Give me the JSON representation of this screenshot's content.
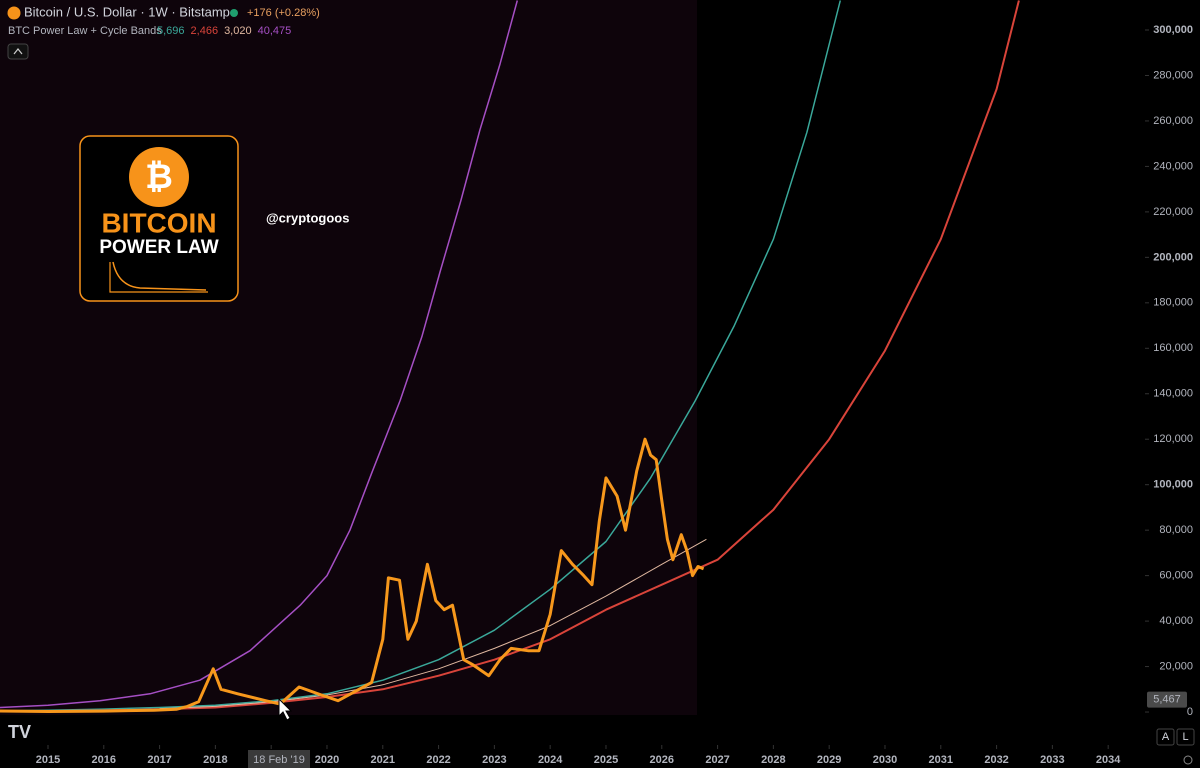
{
  "header": {
    "symbol_title": "Bitcoin / U.S. Dollar · 1W · Bitstamp",
    "change": "+176 (+0.28%)",
    "indicator": "BTC Power Law + Cycle Bands",
    "indicator_values": [
      {
        "text": "5,696",
        "color": "#3aa89a"
      },
      {
        "text": "2,466",
        "color": "#d9443a"
      },
      {
        "text": "3,020",
        "color": "#e0b8a0"
      },
      {
        "text": "40,475",
        "color": "#a54fc4"
      }
    ]
  },
  "logo": {
    "symbol": "₿",
    "line1": "BITCOIN",
    "line2": "POWER LAW"
  },
  "watermark": "@cryptogoos",
  "controls": {
    "auto": "A",
    "log": "L"
  },
  "chart_data": {
    "type": "line",
    "xlim": [
      2014.14,
      2034.66
    ],
    "ylim": [
      -14500,
      313200
    ],
    "xticks": [
      2015,
      2016,
      2017,
      2018,
      2019,
      2020,
      2021,
      2022,
      2023,
      2024,
      2025,
      2026,
      2027,
      2028,
      2029,
      2030,
      2031,
      2032,
      2033,
      2034
    ],
    "yticks": [
      0,
      {
        "value": 20000,
        "label": "20,000"
      },
      {
        "value": 40000,
        "label": "40,000"
      },
      {
        "value": 60000,
        "label": "60,000"
      },
      {
        "value": 80000,
        "label": "80,000"
      },
      {
        "value": 100000,
        "label": "100,000"
      },
      {
        "value": 120000,
        "label": "120,000"
      },
      {
        "value": 140000,
        "label": "140,000"
      },
      {
        "value": 160000,
        "label": "160,000"
      },
      {
        "value": 180000,
        "label": "180,000"
      },
      {
        "value": 200000,
        "label": "200,000"
      },
      {
        "value": 220000,
        "label": "220,000"
      },
      {
        "value": 240000,
        "label": "240,000"
      },
      {
        "value": 260000,
        "label": "260,000"
      },
      {
        "value": 280000,
        "label": "280,000"
      },
      {
        "value": 300000,
        "label": "300,000"
      }
    ],
    "crosshair": {
      "x_label": "18 Feb '19",
      "y": {
        "value": 5467,
        "label": "5,467"
      }
    },
    "series": [
      {
        "color": "#a54fc4",
        "width": 1.5,
        "x": [
          2014.14,
          2015.0,
          2015.93,
          2016.83,
          2017.72,
          2018.62,
          2019.52,
          2020.0,
          2020.41,
          2020.8,
          2021.31,
          2021.7,
          2022.03,
          2022.4,
          2022.74,
          2023.1,
          2023.41
        ],
        "values": [
          2000,
          3000,
          5000,
          8000,
          14000,
          27000,
          47000,
          60000,
          80000,
          105000,
          137000,
          165000,
          194000,
          225000,
          256000,
          285000,
          313000
        ]
      },
      {
        "color": "#3aa89a",
        "width": 1.5,
        "x": [
          2014.14,
          2015,
          2016,
          2017,
          2018,
          2019,
          2020,
          2021,
          2022,
          2023,
          2024,
          2025,
          2025.8,
          2026.6,
          2027.3,
          2028,
          2028.6,
          2029.2
        ],
        "values": [
          500,
          800,
          1300,
          2000,
          3000,
          5000,
          8000,
          14000,
          23000,
          36000,
          54000,
          75000,
          103000,
          137000,
          170000,
          208000,
          255000,
          313000
        ]
      },
      {
        "color": "#d9443a",
        "width": 2,
        "x": [
          2014.14,
          2015,
          2016,
          2017,
          2018,
          2019,
          2020,
          2021,
          2022,
          2023,
          2024,
          2025,
          2026,
          2027,
          2028,
          2029,
          2030,
          2031,
          2032,
          2032.4
        ],
        "values": [
          300,
          400,
          700,
          1200,
          2000,
          4000,
          6600,
          10000,
          16000,
          23000,
          32000,
          45000,
          56000,
          67000,
          89000,
          120000,
          159000,
          208000,
          274000,
          313000
        ]
      },
      {
        "color": "#e0b8a0",
        "width": 1,
        "x": [
          2017,
          2018,
          2019,
          2020,
          2021,
          2022,
          2023,
          2024,
          2025,
          2026,
          2026.8
        ],
        "values": [
          1500,
          2500,
          4500,
          7500,
          12000,
          19000,
          28000,
          38000,
          51000,
          65000,
          76000
        ]
      },
      {
        "color": "#f7981c",
        "width": 3,
        "x": [
          2014.14,
          2015.0,
          2016.0,
          2016.9,
          2017.3,
          2017.5,
          2017.7,
          2017.96,
          2018.1,
          2018.4,
          2018.9,
          2019.16,
          2019.5,
          2019.9,
          2020.2,
          2020.5,
          2020.8,
          2021.0,
          2021.1,
          2021.3,
          2021.45,
          2021.6,
          2021.8,
          2021.95,
          2022.1,
          2022.25,
          2022.45,
          2022.6,
          2022.9,
          2023.1,
          2023.3,
          2023.6,
          2023.8,
          2024.0,
          2024.2,
          2024.4,
          2024.6,
          2024.75,
          2024.88,
          2025.0,
          2025.2,
          2025.35,
          2025.55,
          2025.7,
          2025.8,
          2025.9,
          2026.0,
          2026.1,
          2026.2,
          2026.35,
          2026.45,
          2026.55,
          2026.65,
          2026.75
        ],
        "values": [
          450,
          250,
          400,
          800,
          1200,
          2500,
          4500,
          19000,
          10000,
          8000,
          5000,
          3500,
          11000,
          7500,
          5000,
          9000,
          13000,
          32000,
          59000,
          58000,
          32000,
          40000,
          65000,
          49000,
          45000,
          47000,
          23000,
          21000,
          16000,
          23000,
          28000,
          27000,
          27000,
          43000,
          71000,
          65000,
          60000,
          56000,
          84000,
          103000,
          95000,
          80000,
          106000,
          120000,
          113000,
          111000,
          93000,
          76000,
          67000,
          78000,
          71000,
          60000,
          64000,
          63000
        ]
      }
    ]
  }
}
